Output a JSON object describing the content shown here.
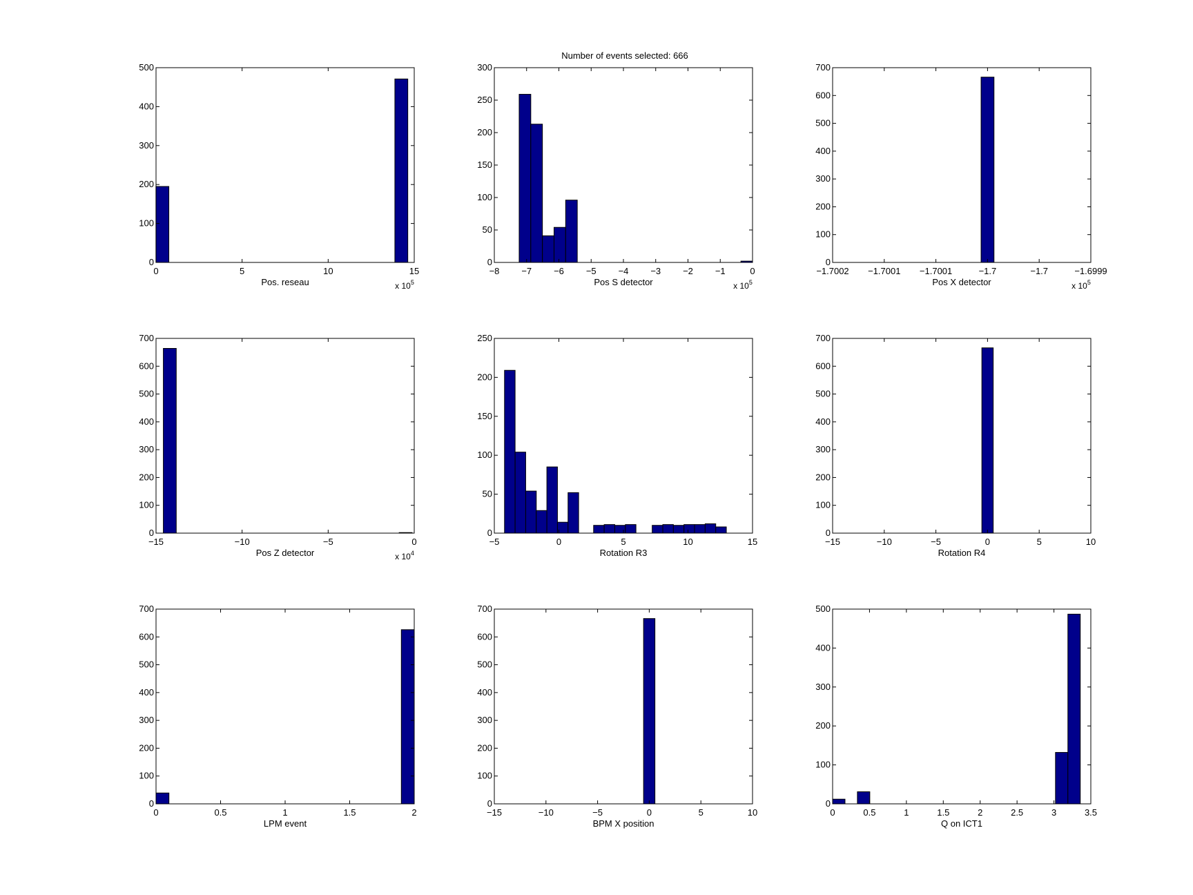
{
  "figure_title": "Number of events selected: 666",
  "colors": {
    "bar_fill": "#00008b",
    "bar_edge": "#000000",
    "axes": "#000000",
    "background": "#ffffff"
  },
  "chart_data": [
    {
      "type": "bar",
      "xlabel": "Pos. reseau",
      "exponent": "x 10",
      "exponent_power": "5",
      "xlim": [
        0,
        15
      ],
      "ylim": [
        0,
        500
      ],
      "xticks": [
        0,
        5,
        10,
        15
      ],
      "xtick_labels": [
        "0",
        "5",
        "10",
        "15"
      ],
      "yticks": [
        0,
        100,
        200,
        300,
        400,
        500
      ],
      "ytick_labels": [
        "0",
        "100",
        "200",
        "300",
        "400",
        "500"
      ],
      "bin_width": 0.75,
      "bins": [
        {
          "x": 0.37,
          "y": 195
        },
        {
          "x": 14.25,
          "y": 471
        }
      ]
    },
    {
      "type": "bar",
      "xlabel": "Pos S detector",
      "exponent": "x 10",
      "exponent_power": "5",
      "xlim": [
        -8,
        0
      ],
      "ylim": [
        0,
        300
      ],
      "xticks": [
        -8,
        -7,
        -6,
        -5,
        -4,
        -3,
        -2,
        -1,
        0
      ],
      "xtick_labels": [
        "−8",
        "−7",
        "−6",
        "−5",
        "−4",
        "−3",
        "−2",
        "−1",
        "0"
      ],
      "yticks": [
        0,
        50,
        100,
        150,
        200,
        250,
        300
      ],
      "ytick_labels": [
        "0",
        "50",
        "100",
        "150",
        "200",
        "250",
        "300"
      ],
      "bin_width": 0.36,
      "bins": [
        {
          "x": -7.05,
          "y": 259
        },
        {
          "x": -6.69,
          "y": 213
        },
        {
          "x": -6.33,
          "y": 41
        },
        {
          "x": -5.97,
          "y": 54
        },
        {
          "x": -5.61,
          "y": 96
        },
        {
          "x": -0.18,
          "y": 2
        }
      ]
    },
    {
      "type": "bar",
      "xlabel": "Pos X detector",
      "exponent": "x 10",
      "exponent_power": "5",
      "xlim": [
        -1.70015,
        -1.6999
      ],
      "ylim": [
        0,
        700
      ],
      "xticks": [
        -1.70015,
        -1.7001,
        -1.70005,
        -1.7,
        -1.69995,
        -1.6999
      ],
      "xtick_labels": [
        "−1.7002",
        "−1.7001",
        "−1.7001",
        "−1.7",
        "−1.7",
        "−1.6999"
      ],
      "yticks": [
        0,
        100,
        200,
        300,
        400,
        500,
        600,
        700
      ],
      "ytick_labels": [
        "0",
        "100",
        "200",
        "300",
        "400",
        "500",
        "600",
        "700"
      ],
      "bin_width": 1.25e-05,
      "bins": [
        {
          "x": -1.7,
          "y": 666
        }
      ]
    },
    {
      "type": "bar",
      "xlabel": "Pos Z detector",
      "exponent": "x 10",
      "exponent_power": "4",
      "xlim": [
        -15,
        0
      ],
      "ylim": [
        0,
        700
      ],
      "xticks": [
        -15,
        -10,
        -5,
        0
      ],
      "xtick_labels": [
        "−15",
        "−10",
        "−5",
        "0"
      ],
      "yticks": [
        0,
        100,
        200,
        300,
        400,
        500,
        600,
        700
      ],
      "ytick_labels": [
        "0",
        "100",
        "200",
        "300",
        "400",
        "500",
        "600",
        "700"
      ],
      "bin_width": 0.75,
      "bins": [
        {
          "x": -14.2,
          "y": 664
        },
        {
          "x": -0.5,
          "y": 2
        }
      ]
    },
    {
      "type": "bar",
      "xlabel": "Rotation R3",
      "exponent": "",
      "exponent_power": "",
      "xlim": [
        -5,
        15
      ],
      "ylim": [
        0,
        250
      ],
      "xticks": [
        -5,
        0,
        5,
        10,
        15
      ],
      "xtick_labels": [
        "−5",
        "0",
        "5",
        "10",
        "15"
      ],
      "yticks": [
        0,
        50,
        100,
        150,
        200,
        250
      ],
      "ytick_labels": [
        "0",
        "50",
        "100",
        "150",
        "200",
        "250"
      ],
      "bin_width": 0.82,
      "bins": [
        {
          "x": -3.8,
          "y": 209
        },
        {
          "x": -2.98,
          "y": 104
        },
        {
          "x": -2.16,
          "y": 54
        },
        {
          "x": -1.34,
          "y": 29
        },
        {
          "x": -0.52,
          "y": 85
        },
        {
          "x": 0.3,
          "y": 14
        },
        {
          "x": 1.12,
          "y": 52
        },
        {
          "x": 3.1,
          "y": 10
        },
        {
          "x": 3.92,
          "y": 11
        },
        {
          "x": 4.74,
          "y": 10
        },
        {
          "x": 5.56,
          "y": 11
        },
        {
          "x": 7.64,
          "y": 10
        },
        {
          "x": 8.46,
          "y": 11
        },
        {
          "x": 9.28,
          "y": 10
        },
        {
          "x": 10.1,
          "y": 11
        },
        {
          "x": 10.92,
          "y": 11
        },
        {
          "x": 11.74,
          "y": 12
        },
        {
          "x": 12.56,
          "y": 8
        }
      ]
    },
    {
      "type": "bar",
      "xlabel": "Rotation R4",
      "exponent": "",
      "exponent_power": "",
      "xlim": [
        -15,
        10
      ],
      "ylim": [
        0,
        700
      ],
      "xticks": [
        -15,
        -10,
        -5,
        0,
        5,
        10
      ],
      "xtick_labels": [
        "−15",
        "−10",
        "−5",
        "0",
        "5",
        "10"
      ],
      "yticks": [
        0,
        100,
        200,
        300,
        400,
        500,
        600,
        700
      ],
      "ytick_labels": [
        "0",
        "100",
        "200",
        "300",
        "400",
        "500",
        "600",
        "700"
      ],
      "bin_width": 1.1,
      "bins": [
        {
          "x": 0.0,
          "y": 666
        }
      ]
    },
    {
      "type": "bar",
      "xlabel": "LPM event",
      "exponent": "",
      "exponent_power": "",
      "xlim": [
        0,
        2
      ],
      "ylim": [
        0,
        700
      ],
      "xticks": [
        0,
        0.5,
        1,
        1.5,
        2
      ],
      "xtick_labels": [
        "0",
        "0.5",
        "1",
        "1.5",
        "2"
      ],
      "yticks": [
        0,
        100,
        200,
        300,
        400,
        500,
        600,
        700
      ],
      "ytick_labels": [
        "0",
        "100",
        "200",
        "300",
        "400",
        "500",
        "600",
        "700"
      ],
      "bin_width": 0.1,
      "bins": [
        {
          "x": 0.05,
          "y": 39
        },
        {
          "x": 1.95,
          "y": 626
        }
      ]
    },
    {
      "type": "bar",
      "xlabel": "BPM X position",
      "exponent": "",
      "exponent_power": "",
      "xlim": [
        -15,
        10
      ],
      "ylim": [
        0,
        700
      ],
      "xticks": [
        -15,
        -10,
        -5,
        0,
        5,
        10
      ],
      "xtick_labels": [
        "−15",
        "−10",
        "−5",
        "0",
        "5",
        "10"
      ],
      "yticks": [
        0,
        100,
        200,
        300,
        400,
        500,
        600,
        700
      ],
      "ytick_labels": [
        "0",
        "100",
        "200",
        "300",
        "400",
        "500",
        "600",
        "700"
      ],
      "bin_width": 1.1,
      "bins": [
        {
          "x": 0.0,
          "y": 666
        }
      ]
    },
    {
      "type": "bar",
      "xlabel": "Q on ICT1",
      "exponent": "",
      "exponent_power": "",
      "xlim": [
        0,
        3.5
      ],
      "ylim": [
        0,
        500
      ],
      "xticks": [
        0,
        0.5,
        1,
        1.5,
        2,
        2.5,
        3,
        3.5
      ],
      "xtick_labels": [
        "0",
        "0.5",
        "1",
        "1.5",
        "2",
        "2.5",
        "3",
        "3.5"
      ],
      "yticks": [
        0,
        100,
        200,
        300,
        400,
        500
      ],
      "ytick_labels": [
        "0",
        "100",
        "200",
        "300",
        "400",
        "500"
      ],
      "bin_width": 0.168,
      "bins": [
        {
          "x": 0.084,
          "y": 12
        },
        {
          "x": 0.42,
          "y": 31
        },
        {
          "x": 3.105,
          "y": 132
        },
        {
          "x": 3.273,
          "y": 487
        }
      ]
    }
  ]
}
